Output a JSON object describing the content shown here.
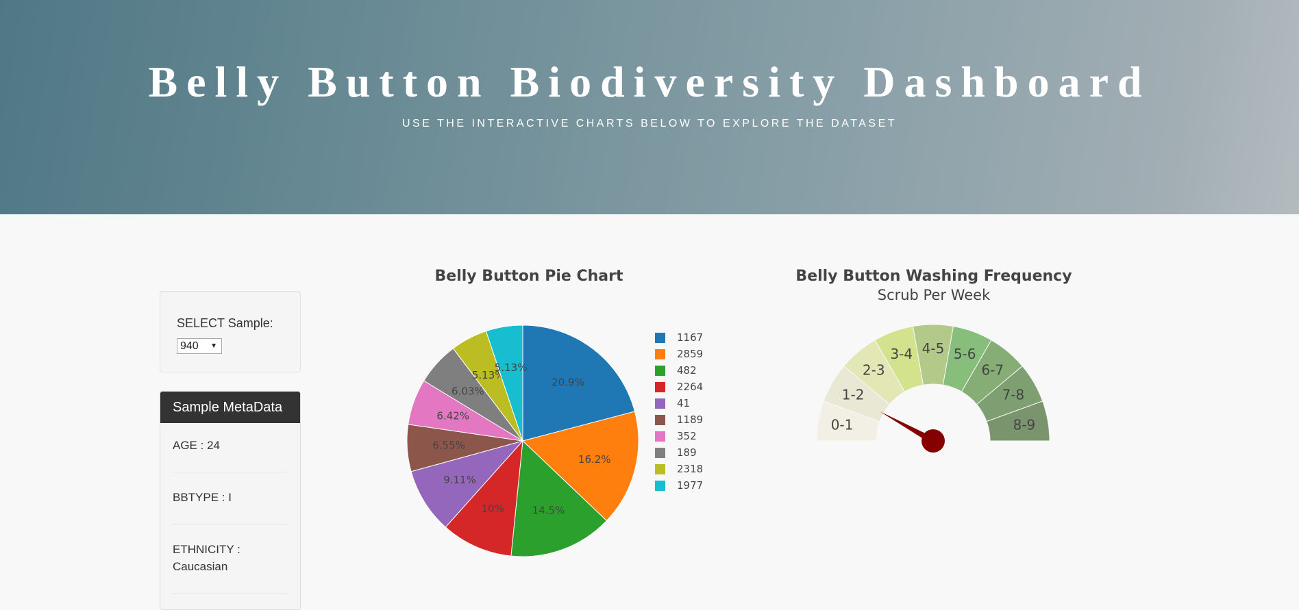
{
  "header": {
    "title": "Belly Button Biodiversity Dashboard",
    "subtitle": "USE THE INTERACTIVE CHARTS BELOW TO EXPLORE THE DATASET"
  },
  "selector": {
    "label": "SELECT Sample:",
    "selected": "940"
  },
  "metadata": {
    "header": "Sample MetaData",
    "items": [
      "AGE : 24",
      "BBTYPE : I",
      "ETHNICITY : Caucasian"
    ]
  },
  "colors": {
    "pie": [
      "#1f77b4",
      "#ff7f0e",
      "#2ca02c",
      "#d62728",
      "#9467bd",
      "#8c564b",
      "#e377c2",
      "#7f7f7f",
      "#bcbd22",
      "#17becf"
    ],
    "gauge": [
      "#f2f0e4",
      "#e9e8d4",
      "#e3e7b6",
      "#d3e38d",
      "#b3c98a",
      "#88be7b",
      "#86ad75",
      "#7d9f71",
      "#7a946d"
    ],
    "needle": "#850000"
  },
  "chart_data": [
    {
      "type": "pie",
      "title": "Belly Button Pie Chart",
      "labels": [
        "1167",
        "2859",
        "482",
        "2264",
        "41",
        "1189",
        "352",
        "189",
        "2318",
        "1977"
      ],
      "percentages": [
        20.9,
        16.2,
        14.5,
        10,
        9.11,
        6.55,
        6.42,
        6.03,
        5.13,
        5.13
      ],
      "text_labels": [
        "20.9%",
        "16.2%",
        "14.5%",
        "10%",
        "9.11%",
        "6.55%",
        "6.42%",
        "6.03%",
        "5.13%",
        "5.13%"
      ],
      "legend_position": "right"
    },
    {
      "type": "gauge",
      "title": "Belly Button Washing Frequency",
      "subtitle": "Scrub Per Week",
      "ranges": [
        "0-1",
        "1-2",
        "2-3",
        "3-4",
        "4-5",
        "5-6",
        "6-7",
        "7-8",
        "8-9"
      ],
      "min": 0,
      "max": 9,
      "value": 2
    }
  ]
}
